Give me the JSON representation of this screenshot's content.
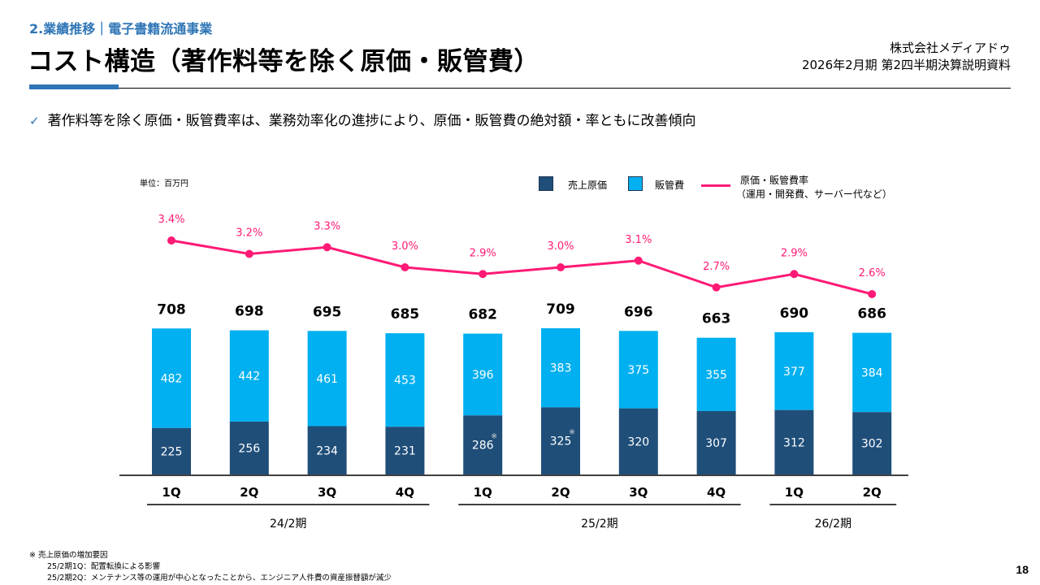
{
  "header": {
    "section_label": "2.業績推移｜電子書籍流通事業",
    "title": "コスト構造（著作料等を除く原価・販管費）",
    "company": "株式会社メディアドゥ",
    "document": "2026年2月期 第2四半期決算説明資料"
  },
  "bullet": {
    "icon": "checkmark-icon",
    "text": "著作料等を除く原価・販管費率は、業務効率化の進捗により、原価・販管費の絶対額・率ともに改善傾向"
  },
  "colors": {
    "accent": "#2e75b6",
    "cost_of_sales": "#1f4e79",
    "sga": "#00b0f0",
    "rate_line": "#ff1a75"
  },
  "chart_data": {
    "type": "bar",
    "stacked": true,
    "unit_label": "単位：百万円",
    "categories": [
      "1Q",
      "2Q",
      "3Q",
      "4Q",
      "1Q",
      "2Q",
      "3Q",
      "4Q",
      "1Q",
      "2Q"
    ],
    "period_groups": [
      {
        "label": "24/2期",
        "categories": [
          0,
          1,
          2,
          3
        ]
      },
      {
        "label": "25/2期",
        "categories": [
          4,
          5,
          6,
          7
        ]
      },
      {
        "label": "26/2期",
        "categories": [
          8,
          9
        ]
      }
    ],
    "series": [
      {
        "name": "売上原価",
        "type": "bar",
        "color": "#1f4e79",
        "values": [
          225,
          256,
          234,
          231,
          286,
          325,
          320,
          307,
          312,
          302
        ],
        "markers": [
          "",
          "",
          "",
          "",
          "※",
          "※",
          "",
          "",
          "",
          ""
        ]
      },
      {
        "name": "販管費",
        "type": "bar",
        "color": "#00b0f0",
        "values": [
          482,
          442,
          461,
          453,
          396,
          383,
          375,
          355,
          377,
          384
        ]
      },
      {
        "name": "原価・販管費率",
        "name_line2": "（運用・開発費、サーバー代など）",
        "type": "line",
        "color": "#ff1a75",
        "values": [
          3.4,
          3.2,
          3.3,
          3.0,
          2.9,
          3.0,
          3.1,
          2.7,
          2.9,
          2.6
        ],
        "labels": [
          "3.4%",
          "3.2%",
          "3.3%",
          "3.0%",
          "2.9%",
          "3.0%",
          "3.1%",
          "2.7%",
          "2.9%",
          "2.6%"
        ]
      }
    ],
    "totals": [
      708,
      698,
      695,
      685,
      682,
      709,
      696,
      663,
      690,
      686
    ],
    "legend_position": "top-right",
    "grid": false
  },
  "footnote": {
    "title": "※ 売上原価の増加要因",
    "lines": [
      "25/2期1Q：配置転換による影響",
      "25/2期2Q：メンテナンス等の運用が中心となったことから、エンジニア人件費の資産振替額が減少"
    ]
  },
  "page_number": "18"
}
